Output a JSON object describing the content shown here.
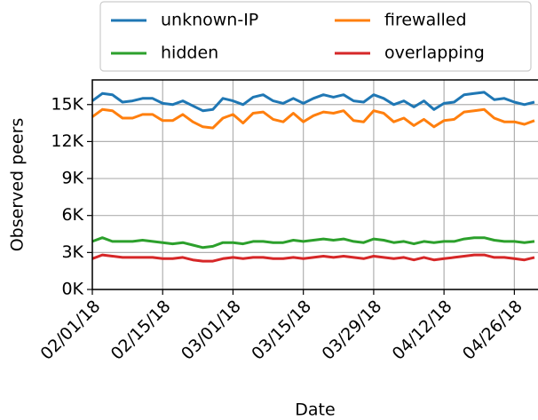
{
  "chart_data": {
    "type": "line",
    "x_label": "Date",
    "y_label": "Observed peers",
    "x": [
      "2018-02-01",
      "2018-02-03",
      "2018-02-05",
      "2018-02-07",
      "2018-02-09",
      "2018-02-11",
      "2018-02-13",
      "2018-02-15",
      "2018-02-17",
      "2018-02-19",
      "2018-02-21",
      "2018-02-23",
      "2018-02-25",
      "2018-02-27",
      "2018-03-01",
      "2018-03-03",
      "2018-03-05",
      "2018-03-07",
      "2018-03-09",
      "2018-03-11",
      "2018-03-13",
      "2018-03-15",
      "2018-03-17",
      "2018-03-19",
      "2018-03-21",
      "2018-03-23",
      "2018-03-25",
      "2018-03-27",
      "2018-03-29",
      "2018-03-31",
      "2018-04-02",
      "2018-04-04",
      "2018-04-06",
      "2018-04-08",
      "2018-04-10",
      "2018-04-12",
      "2018-04-14",
      "2018-04-16",
      "2018-04-18",
      "2018-04-20",
      "2018-04-22",
      "2018-04-24",
      "2018-04-26",
      "2018-04-28",
      "2018-04-30"
    ],
    "series": [
      {
        "name": "unknown-IP",
        "color": "#1f77b4",
        "values": [
          15300,
          15900,
          15800,
          15200,
          15300,
          15500,
          15500,
          15100,
          15000,
          15300,
          14900,
          14500,
          14600,
          15500,
          15300,
          15000,
          15600,
          15800,
          15300,
          15100,
          15500,
          15100,
          15500,
          15800,
          15600,
          15800,
          15300,
          15200,
          15800,
          15500,
          15000,
          15300,
          14800,
          15300,
          14600,
          15100,
          15200,
          15800,
          15900,
          16000,
          15400,
          15500,
          15200,
          15000,
          15200
        ]
      },
      {
        "name": "firewalled",
        "color": "#ff7f0e",
        "values": [
          14000,
          14600,
          14500,
          13900,
          13900,
          14200,
          14200,
          13700,
          13700,
          14200,
          13600,
          13200,
          13100,
          13900,
          14200,
          13500,
          14300,
          14400,
          13800,
          13600,
          14300,
          13600,
          14100,
          14400,
          14300,
          14500,
          13700,
          13600,
          14500,
          14300,
          13600,
          13900,
          13300,
          13800,
          13200,
          13700,
          13800,
          14400,
          14500,
          14600,
          13900,
          13600,
          13600,
          13400,
          13700
        ]
      },
      {
        "name": "hidden",
        "color": "#2ca02c",
        "values": [
          3900,
          4200,
          3900,
          3900,
          3900,
          4000,
          3900,
          3800,
          3700,
          3800,
          3600,
          3400,
          3500,
          3800,
          3800,
          3700,
          3900,
          3900,
          3800,
          3800,
          4000,
          3900,
          4000,
          4100,
          4000,
          4100,
          3900,
          3800,
          4100,
          4000,
          3800,
          3900,
          3700,
          3900,
          3800,
          3900,
          3900,
          4100,
          4200,
          4200,
          4000,
          3900,
          3900,
          3800,
          3900
        ]
      },
      {
        "name": "overlapping",
        "color": "#d62728",
        "values": [
          2500,
          2800,
          2700,
          2600,
          2600,
          2600,
          2600,
          2500,
          2500,
          2600,
          2400,
          2300,
          2300,
          2500,
          2600,
          2500,
          2600,
          2600,
          2500,
          2500,
          2600,
          2500,
          2600,
          2700,
          2600,
          2700,
          2600,
          2500,
          2700,
          2600,
          2500,
          2600,
          2400,
          2600,
          2400,
          2500,
          2600,
          2700,
          2800,
          2800,
          2600,
          2600,
          2500,
          2400,
          2600
        ]
      }
    ],
    "xlim": [
      "2018-02-01",
      "2018-04-30"
    ],
    "xticks": [
      {
        "value": "2018-02-01",
        "label": "02/01/18"
      },
      {
        "value": "2018-02-15",
        "label": "02/15/18"
      },
      {
        "value": "2018-03-01",
        "label": "03/01/18"
      },
      {
        "value": "2018-03-15",
        "label": "03/15/18"
      },
      {
        "value": "2018-03-29",
        "label": "03/29/18"
      },
      {
        "value": "2018-04-12",
        "label": "04/12/18"
      },
      {
        "value": "2018-04-26",
        "label": "04/26/18"
      }
    ],
    "ylim": [
      0,
      17000
    ],
    "yticks": [
      {
        "value": 0,
        "label": "0K"
      },
      {
        "value": 3000,
        "label": "3K"
      },
      {
        "value": 6000,
        "label": "6K"
      },
      {
        "value": 9000,
        "label": "9K"
      },
      {
        "value": 12000,
        "label": "12K"
      },
      {
        "value": 15000,
        "label": "15K"
      }
    ],
    "grid": true,
    "legend": "upper center",
    "legend_columns": 2
  }
}
